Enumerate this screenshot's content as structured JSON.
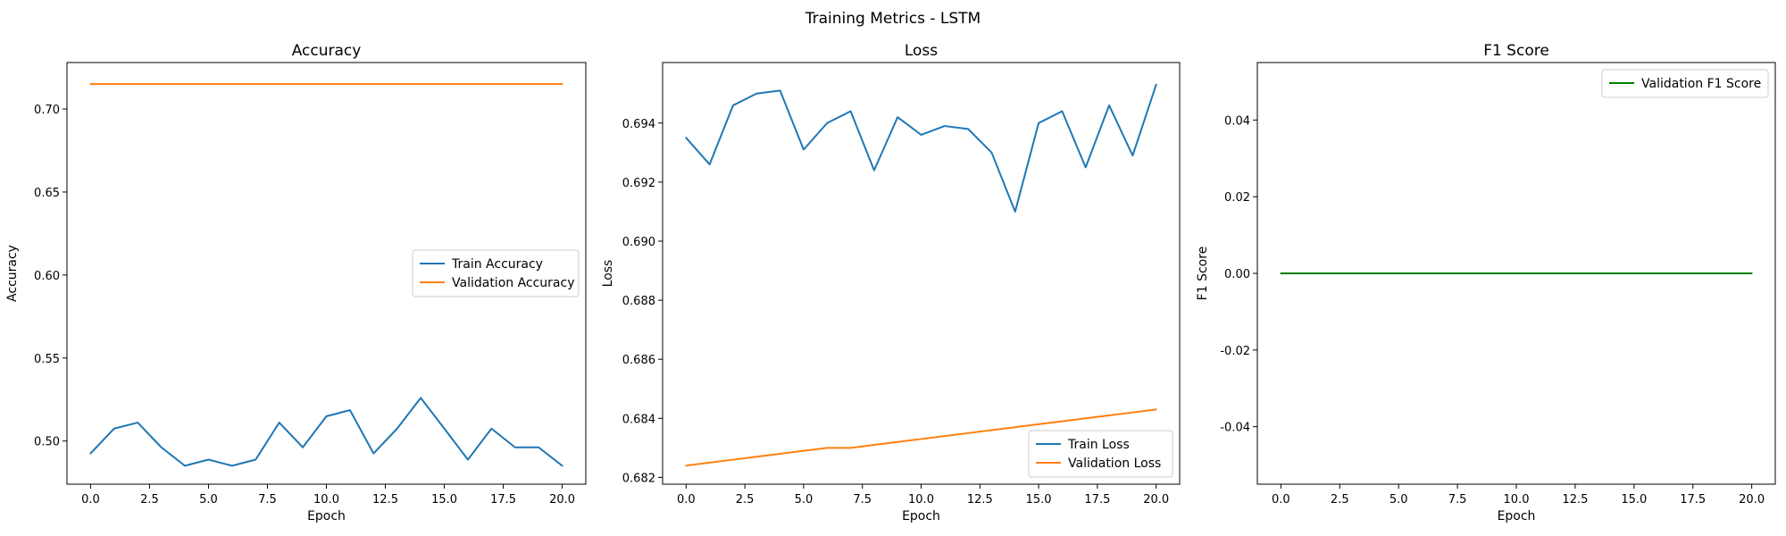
{
  "figure": {
    "title": "Training Metrics - LSTM"
  },
  "chart_data": [
    {
      "type": "line",
      "title": "Accuracy",
      "xlabel": "Epoch",
      "ylabel": "Accuracy",
      "xlim": [
        -1,
        21
      ],
      "ylim": [
        0.474,
        0.728
      ],
      "xticks": [
        0.0,
        2.5,
        5.0,
        7.5,
        10.0,
        12.5,
        15.0,
        17.5,
        20.0
      ],
      "yticks": [
        0.5,
        0.55,
        0.6,
        0.65,
        0.7
      ],
      "x_decimals": 1,
      "y_decimals": 2,
      "legend": "center-right",
      "grid": false,
      "x": [
        0,
        1,
        2,
        3,
        4,
        5,
        6,
        7,
        8,
        9,
        10,
        11,
        12,
        13,
        14,
        15,
        16,
        17,
        18,
        19,
        20
      ],
      "series": [
        {
          "name": "Train Accuracy",
          "color": "#1f77b4",
          "values": [
            0.4925,
            0.5075,
            0.5111,
            0.4962,
            0.4851,
            0.4888,
            0.4851,
            0.4888,
            0.5111,
            0.4962,
            0.5149,
            0.5186,
            0.4925,
            0.5075,
            0.526,
            0.5075,
            0.4888,
            0.5075,
            0.4962,
            0.4962,
            0.4851
          ]
        },
        {
          "name": "Validation Accuracy",
          "color": "#ff7f0e",
          "values": [
            0.715,
            0.715,
            0.715,
            0.715,
            0.715,
            0.715,
            0.715,
            0.715,
            0.715,
            0.715,
            0.715,
            0.715,
            0.715,
            0.715,
            0.715,
            0.715,
            0.715,
            0.715,
            0.715,
            0.715,
            0.715
          ]
        }
      ]
    },
    {
      "type": "line",
      "title": "Loss",
      "xlabel": "Epoch",
      "ylabel": "Loss",
      "xlim": [
        -1,
        21
      ],
      "ylim": [
        0.68177,
        0.69605
      ],
      "xticks": [
        0.0,
        2.5,
        5.0,
        7.5,
        10.0,
        12.5,
        15.0,
        17.5,
        20.0
      ],
      "yticks": [
        0.682,
        0.684,
        0.686,
        0.688,
        0.69,
        0.692,
        0.694
      ],
      "x_decimals": 1,
      "y_decimals": 3,
      "legend": "lower-right",
      "grid": false,
      "x": [
        0,
        1,
        2,
        3,
        4,
        5,
        6,
        7,
        8,
        9,
        10,
        11,
        12,
        13,
        14,
        15,
        16,
        17,
        18,
        19,
        20
      ],
      "series": [
        {
          "name": "Train Loss",
          "color": "#1f77b4",
          "values": [
            0.6935,
            0.6926,
            0.6946,
            0.695,
            0.6951,
            0.6931,
            0.694,
            0.6944,
            0.6924,
            0.6942,
            0.6936,
            0.6939,
            0.6938,
            0.693,
            0.691,
            0.694,
            0.6944,
            0.6925,
            0.6946,
            0.6929,
            0.6953
          ]
        },
        {
          "name": "Validation Loss",
          "color": "#ff7f0e",
          "values": [
            0.6824,
            0.6825,
            0.6826,
            0.6827,
            0.6828,
            0.6829,
            0.683,
            0.683,
            0.6831,
            0.6832,
            0.6833,
            0.6834,
            0.6835,
            0.6836,
            0.6837,
            0.6838,
            0.6839,
            0.684,
            0.6841,
            0.6842,
            0.6843
          ]
        }
      ]
    },
    {
      "type": "line",
      "title": "F1 Score",
      "xlabel": "Epoch",
      "ylabel": "F1 Score",
      "xlim": [
        -1,
        21
      ],
      "ylim": [
        -0.055,
        0.055
      ],
      "xticks": [
        0.0,
        2.5,
        5.0,
        7.5,
        10.0,
        12.5,
        15.0,
        17.5,
        20.0
      ],
      "yticks": [
        -0.04,
        -0.02,
        0.0,
        0.02,
        0.04
      ],
      "x_decimals": 1,
      "y_decimals": 2,
      "legend": "upper-right",
      "grid": false,
      "x": [
        0,
        1,
        2,
        3,
        4,
        5,
        6,
        7,
        8,
        9,
        10,
        11,
        12,
        13,
        14,
        15,
        16,
        17,
        18,
        19,
        20
      ],
      "series": [
        {
          "name": "Validation F1 Score",
          "color": "#008000",
          "values": [
            0,
            0,
            0,
            0,
            0,
            0,
            0,
            0,
            0,
            0,
            0,
            0,
            0,
            0,
            0,
            0,
            0,
            0,
            0,
            0,
            0
          ]
        }
      ]
    }
  ]
}
